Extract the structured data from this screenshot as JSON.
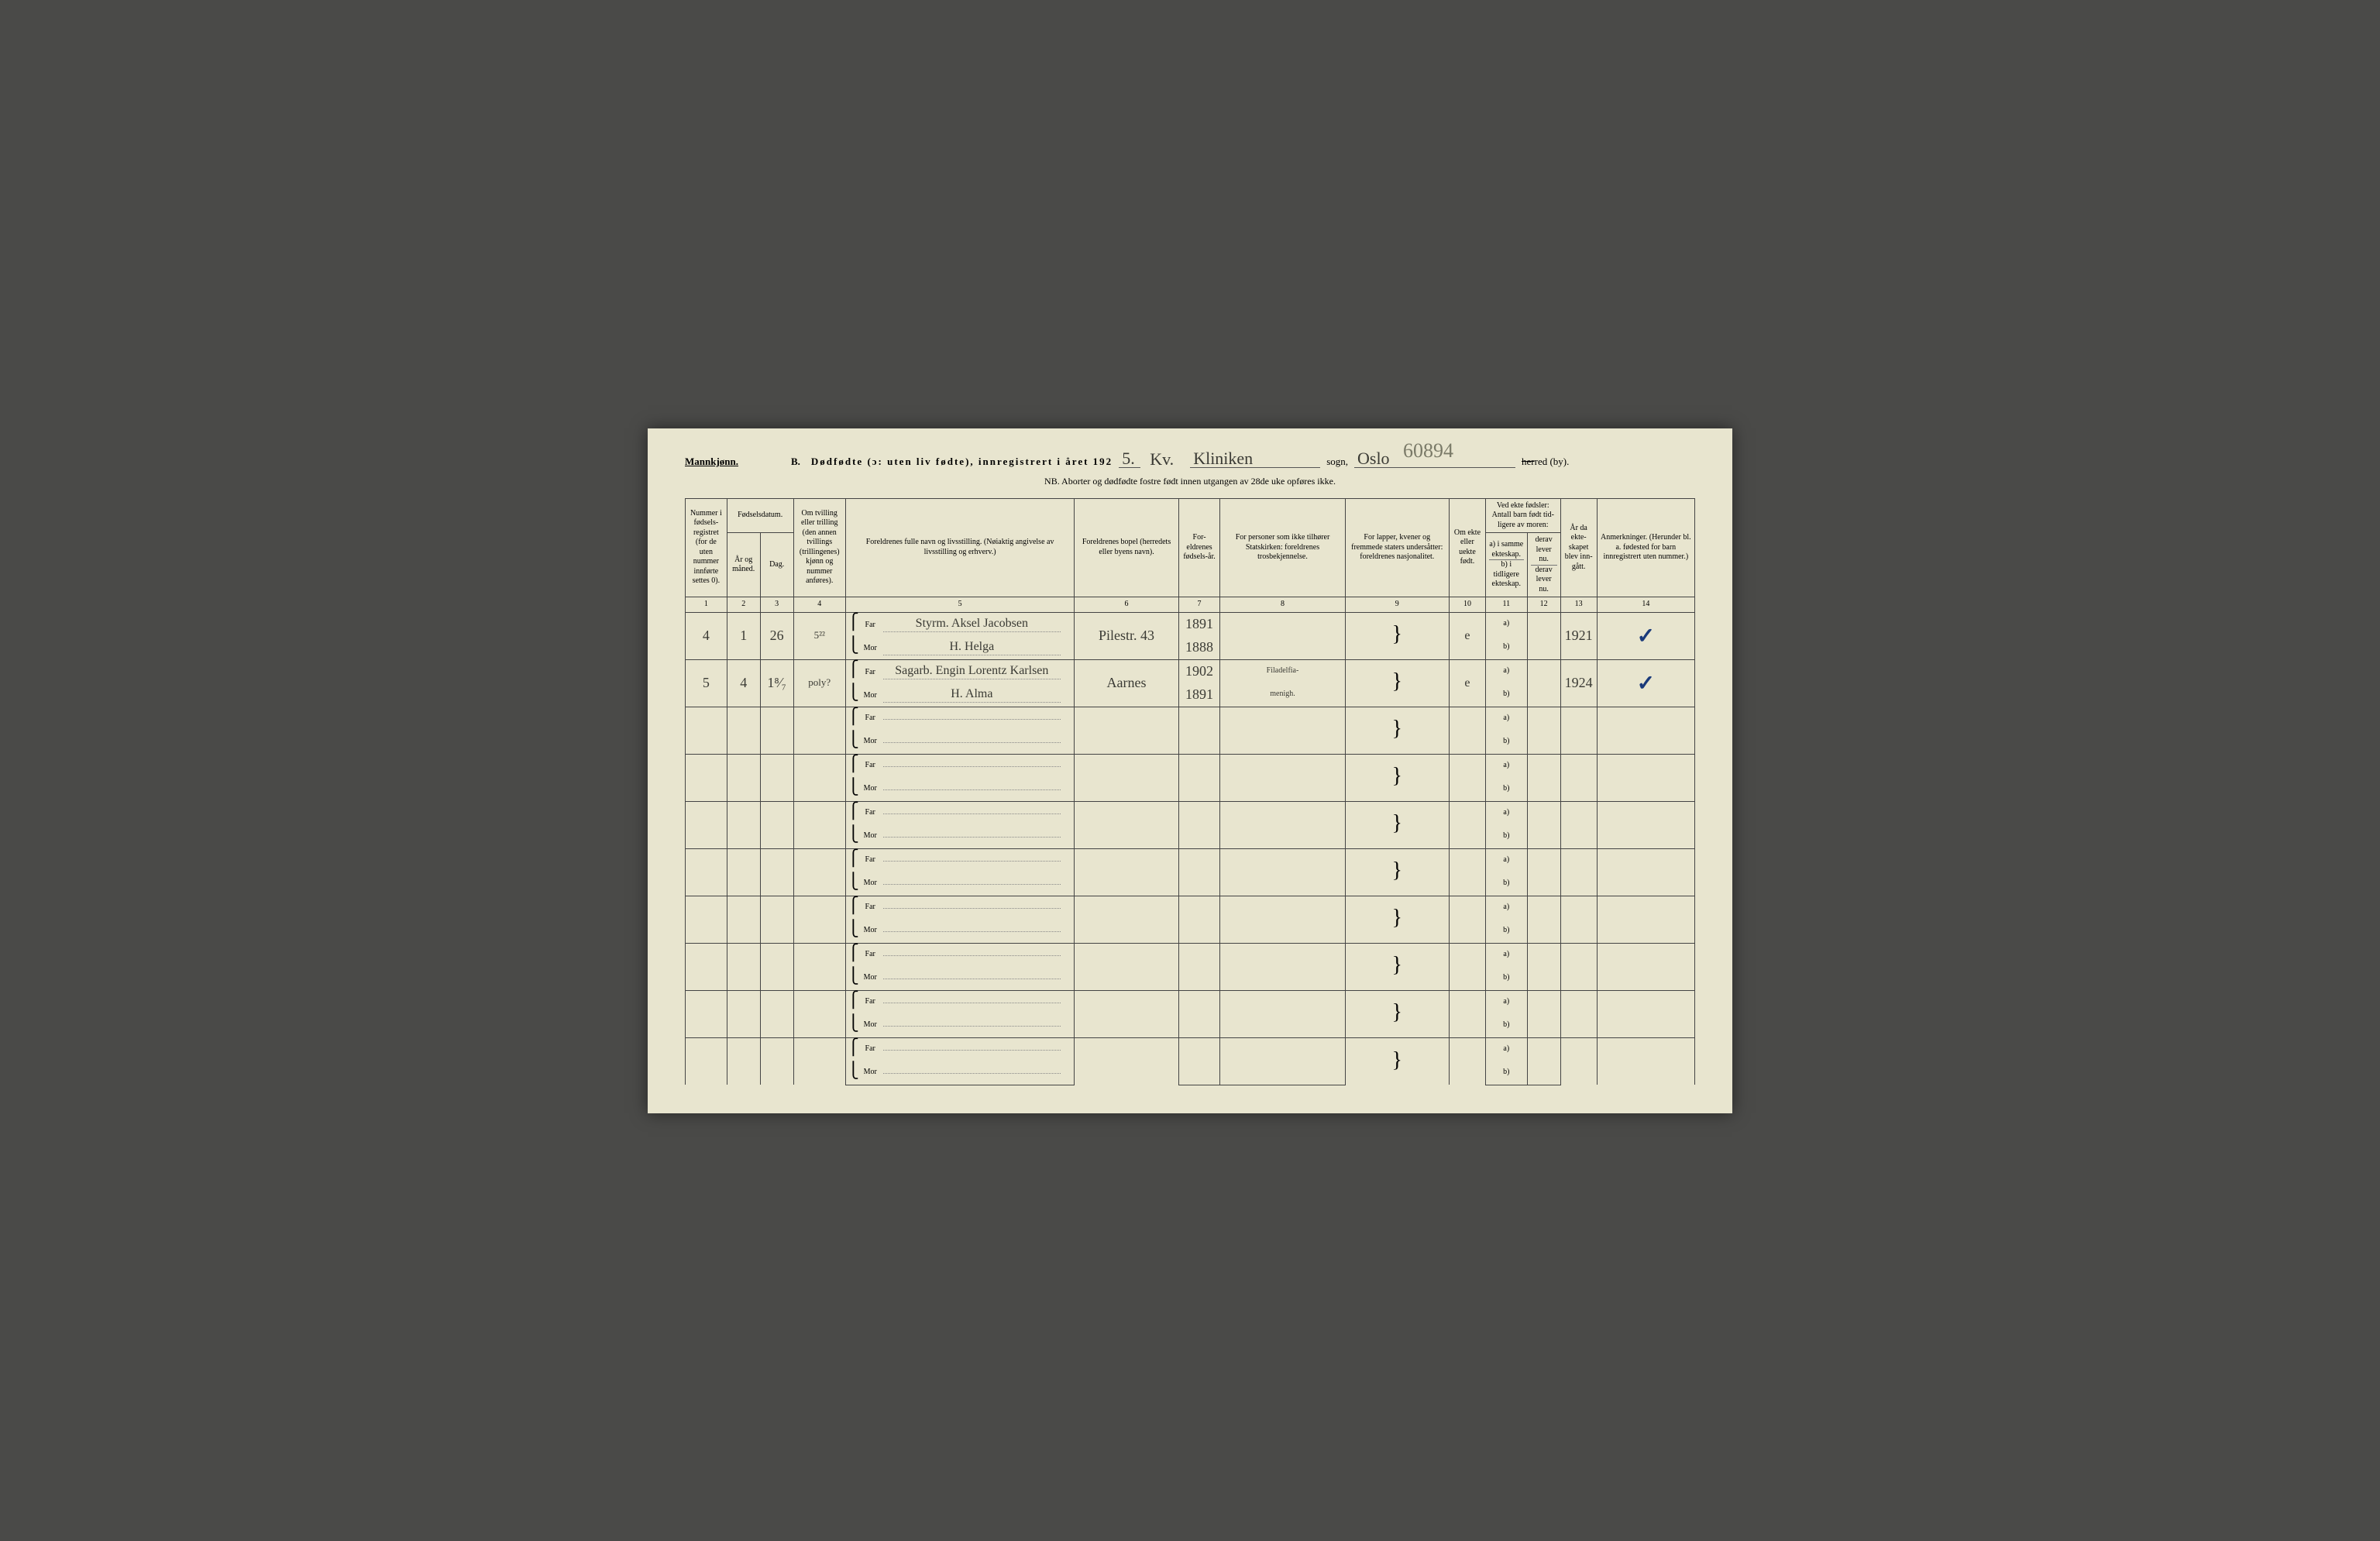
{
  "header": {
    "gender": "Mannkjønn.",
    "lead_b": "B.",
    "title_main": "Dødfødte (ɔ: uten liv fødte), innregistrert i året 192",
    "year_suffix_hw": "5.",
    "sogn_prefix_hw": "Kv.",
    "sogn_hw": "Kliniken",
    "sogn_label": "sogn,",
    "by_hw": "Oslo",
    "herred_label": "herred (by).",
    "archive_num": "60894",
    "nb": "NB.  Aborter og dødfødte fostre født innen utgangen av 28de uke opføres ikke."
  },
  "columns": {
    "c1": "Nummer i fødsels-registret (for de uten nummer innførte settes 0).",
    "c2_top": "Fødselsdatum.",
    "c2a": "År og måned.",
    "c2b": "Dag.",
    "c4": "Om tvilling eller trilling (den annen tvillings (trillingenes) kjønn og nummer anføres).",
    "c5": "Foreldrenes fulle navn og livsstilling.\n(Nøiaktig angivelse av livsstilling og erhverv.)",
    "c6": "Foreldrenes bopel\n(herredets eller byens navn).",
    "c7": "For-eldrenes fødsels-år.",
    "c8": "For personer som ikke tilhører Statskirken:\nforeldrenes trosbekjennelse.",
    "c9": "For lapper, kvener og fremmede staters undersåtter:\nforeldrenes nasjonalitet.",
    "c10": "Om ekte eller uekte født.",
    "c11_top": "Ved ekte fødsler:\nAntall barn født tid-ligere av moren:",
    "c11a": "a) i samme ekteskap.",
    "c11b": "b) i tidligere ekteskap.",
    "c12a": "derav lever nu.",
    "c12b": "derav lever nu.",
    "c13": "År da ekte-skapet blev inn-gått.",
    "c14": "Anmerkninger.\n(Herunder bl. a. fødested for barn innregistrert uten nummer.)",
    "nums": [
      "1",
      "2",
      "3",
      "4",
      "5",
      "6",
      "7",
      "8",
      "9",
      "10",
      "11",
      "12",
      "13",
      "14"
    ]
  },
  "labels": {
    "far": "Far",
    "mor": "Mor",
    "a": "a)",
    "b": "b)"
  },
  "rows": [
    {
      "num": "4",
      "maaned": "1",
      "dag": "26",
      "tvilling": "5²²",
      "far": "Styrm. Aksel Jacobsen",
      "mor": "H. Helga",
      "bopel": "Pilestr. 43",
      "far_aar": "1891",
      "mor_aar": "1888",
      "tros_far": "",
      "tros_mor": "",
      "ekte": "e",
      "c13": "1921",
      "check": "✓"
    },
    {
      "num": "5",
      "maaned": "4",
      "dag": "1⁸⁄₇",
      "tvilling": "poly?",
      "far": "Sagarb. Engin Lorentz Karlsen",
      "mor": "H. Alma",
      "bopel": "Aarnes",
      "far_aar": "1902",
      "mor_aar": "1891",
      "tros_far": "Filadelfia-",
      "tros_mor": "menigh.",
      "ekte": "e",
      "c13": "1924",
      "check": "✓"
    }
  ],
  "empty_rows": 8,
  "colors": {
    "paper": "#e8e5cf",
    "ink": "#2b2b28",
    "hw": "#3a3a34",
    "blue": "#1a3a7a",
    "border": "#444444"
  },
  "col_widths_pct": [
    4,
    3.2,
    3.2,
    5,
    22,
    10,
    4,
    12,
    10,
    3.5,
    4,
    3.2,
    3.5,
    9.4
  ]
}
